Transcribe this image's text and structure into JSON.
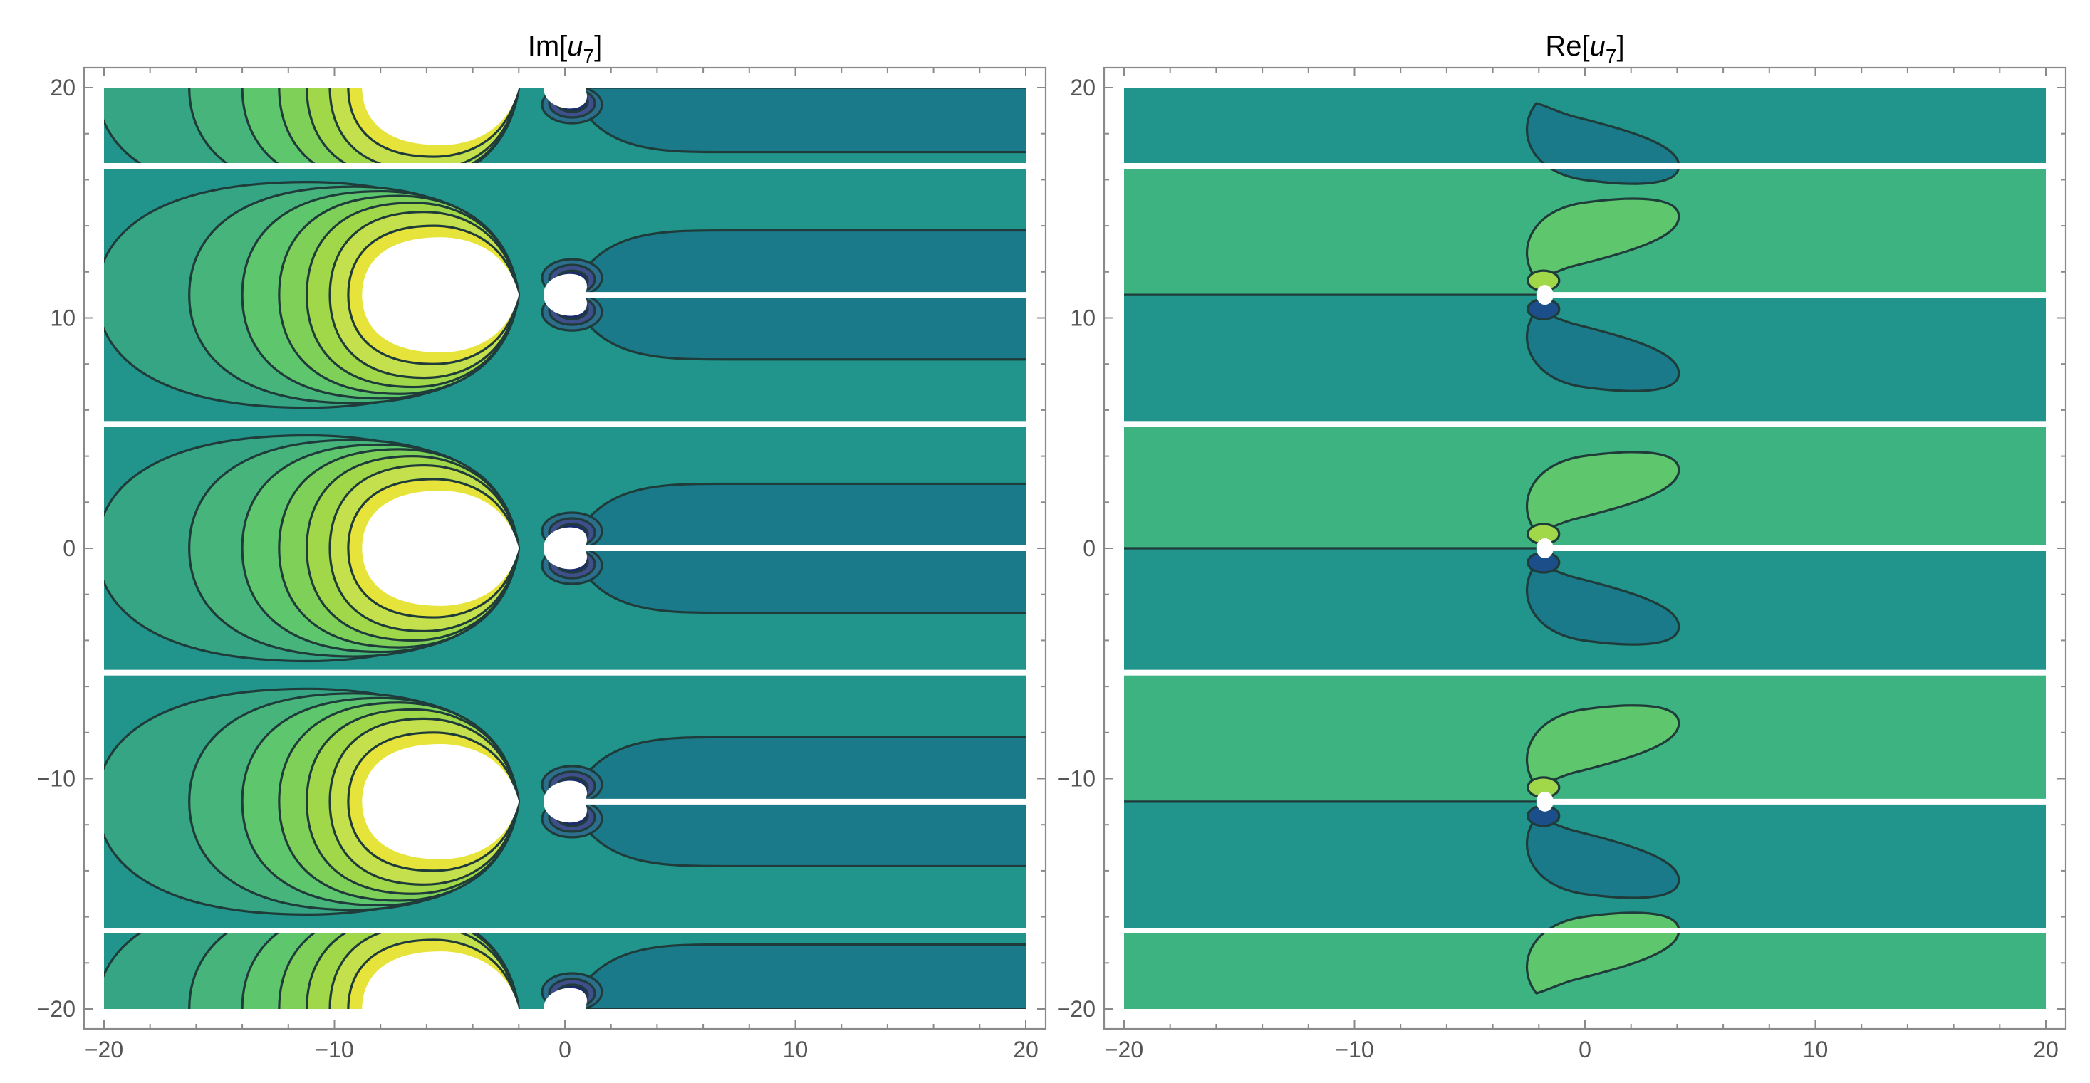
{
  "chart_data": [
    {
      "type": "contour",
      "id": "left",
      "title_prefix": "Im[",
      "title_var": "u",
      "title_sub": "7",
      "title_suffix": "]",
      "xlim": [
        -20,
        20
      ],
      "ylim": [
        -20,
        20
      ],
      "xticks": [
        -20,
        -10,
        0,
        10,
        20
      ],
      "yticks": [
        -20,
        -10,
        0,
        10,
        20
      ],
      "xtick_labels": [
        "−20",
        "−10",
        "0",
        "10",
        "20"
      ],
      "ytick_labels": [
        "−20",
        "−10",
        "0",
        "10",
        "20"
      ],
      "background_color": "#21958b",
      "strip_boundaries_y": [
        16.6,
        5.4,
        -5.4,
        -16.6
      ],
      "branch_cuts": [
        {
          "x_from": 0,
          "x_to": 20,
          "y": 11
        },
        {
          "x_from": 0,
          "x_to": 20,
          "y": 0
        },
        {
          "x_from": 0,
          "x_to": 20,
          "y": -11
        }
      ],
      "lobe_centers": [
        {
          "x": -5,
          "y": 11,
          "clip_y": [
            5.4,
            16.6
          ]
        },
        {
          "x": -5,
          "y": 0,
          "clip_y": [
            -5.4,
            5.4
          ]
        },
        {
          "x": -5,
          "y": -11,
          "clip_y": [
            -16.6,
            -5.4
          ]
        },
        {
          "x": -5,
          "y": 20,
          "clip_y": [
            16.6,
            20
          ]
        },
        {
          "x": -5,
          "y": -20,
          "clip_y": [
            -20,
            -16.6
          ]
        }
      ],
      "level_colors": [
        "#35a584",
        "#46b47b",
        "#5ec66c",
        "#7ed058",
        "#a1d84a",
        "#c5e04d",
        "#e6e33a",
        "#ffffff"
      ],
      "level_radii_x": [
        15.3,
        11.3,
        9.0,
        7.4,
        6.2,
        5.2,
        4.4,
        3.8
      ],
      "level_radii_y": [
        4.9,
        4.7,
        4.5,
        4.3,
        4.0,
        3.6,
        3.0,
        2.5
      ],
      "dark_band_color": "#1a7a8a",
      "dark_band_span_x": [
        0.2,
        20
      ],
      "dark_band_half_height": 2.8,
      "deep_colors": [
        "#2c6f8c",
        "#3f4f8b",
        "#1c2b6a"
      ]
    },
    {
      "type": "contour",
      "id": "right",
      "title_prefix": "Re[",
      "title_var": "u",
      "title_sub": "7",
      "title_suffix": "]",
      "xlim": [
        -20,
        20
      ],
      "ylim": [
        -20,
        20
      ],
      "xticks": [
        -20,
        -10,
        0,
        10,
        20
      ],
      "yticks": [
        -20,
        -10,
        0,
        10,
        20
      ],
      "xtick_labels": [
        "−20",
        "−10",
        "0",
        "10",
        "20"
      ],
      "ytick_labels": [
        "−20",
        "−10",
        "0",
        "10",
        "20"
      ],
      "strip_boundaries_y": [
        16.6,
        5.4,
        -5.4,
        -16.6
      ],
      "branch_cuts": [
        {
          "x_from": -1.8,
          "x_to": 20,
          "y": 11
        },
        {
          "x_from": -1.8,
          "x_to": 20,
          "y": 0
        },
        {
          "x_from": -1.8,
          "x_to": 20,
          "y": -11
        }
      ],
      "upper_half_color": "#3db382",
      "lower_half_color": "#21958b",
      "singularity_x": -1.8,
      "singularity_ys": [
        11,
        0,
        -11
      ],
      "lobe_fill_upper": "#5ec66c",
      "lobe_fill_lower": "#1a7a8a",
      "inner_upper": "#a1d84a",
      "inner_lower": "#1c4f8a"
    }
  ]
}
